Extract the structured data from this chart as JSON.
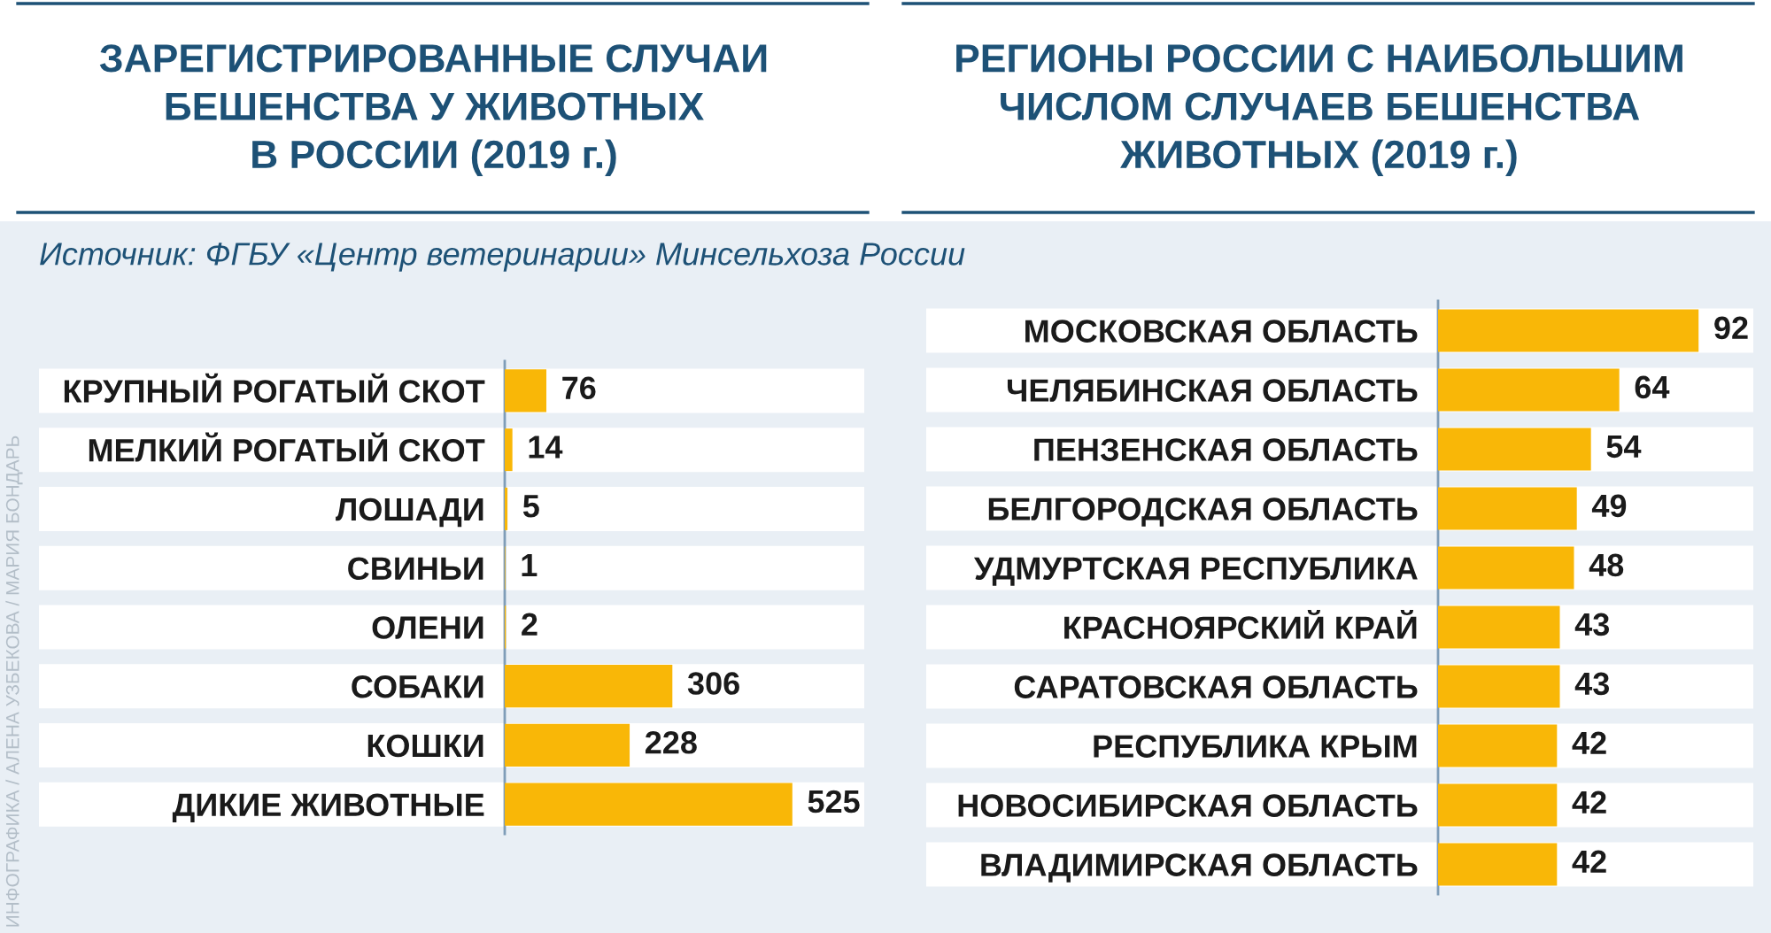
{
  "chart_data": [
    {
      "type": "bar",
      "orientation": "horizontal",
      "title": "ЗАРЕГИСТРИРОВАННЫЕ СЛУЧАИ\nБЕШЕНСТВА У ЖИВОТНЫХ\nВ РОССИИ (2019 г.)",
      "categories": [
        "КРУПНЫЙ РОГАТЫЙ СКОТ",
        "МЕЛКИЙ РОГАТЫЙ СКОТ",
        "ЛОШАДИ",
        "СВИНЬИ",
        "ОЛЕНИ",
        "СОБАКИ",
        "КОШКИ",
        "ДИКИЕ ЖИВОТНЫЕ"
      ],
      "values": [
        76,
        14,
        5,
        1,
        2,
        306,
        228,
        525
      ],
      "color": "#f9b707",
      "data_labels": true,
      "tick_labels": "y",
      "annotations": [
        "Источник: ФГБУ «Центр ветеринарии» Минсельхоза России",
        "ИНФОГРАФИКА / АЛЕНА УЗБЕКОВА / МАРИЯ БОНДАРЬ"
      ]
    },
    {
      "type": "bar",
      "orientation": "horizontal",
      "title": "РЕГИОНЫ РОССИИ С НАИБОЛЬШИМ\nЧИСЛОМ СЛУЧАЕВ БЕШЕНСТВА\nЖИВОТНЫХ (2019 г.)",
      "categories": [
        "МОСКОВСКАЯ ОБЛАСТЬ",
        "ЧЕЛЯБИНСКАЯ ОБЛАСТЬ",
        "ПЕНЗЕНСКАЯ ОБЛАСТЬ",
        "БЕЛГОРОДСКАЯ ОБЛАСТЬ",
        "УДМУРТСКАЯ РЕСПУБЛИКА",
        "КРАСНОЯРСКИЙ КРАЙ",
        "САРАТОВСКАЯ ОБЛАСТЬ",
        "РЕСПУБЛИКА КРЫМ",
        "НОВОСИБИРСКАЯ ОБЛАСТЬ",
        "ВЛАДИМИРСКАЯ ОБЛАСТЬ"
      ],
      "values": [
        92,
        64,
        54,
        49,
        48,
        43,
        43,
        42,
        42,
        42
      ],
      "color": "#f9b707",
      "data_labels": true,
      "tick_labels": "y"
    }
  ]
}
